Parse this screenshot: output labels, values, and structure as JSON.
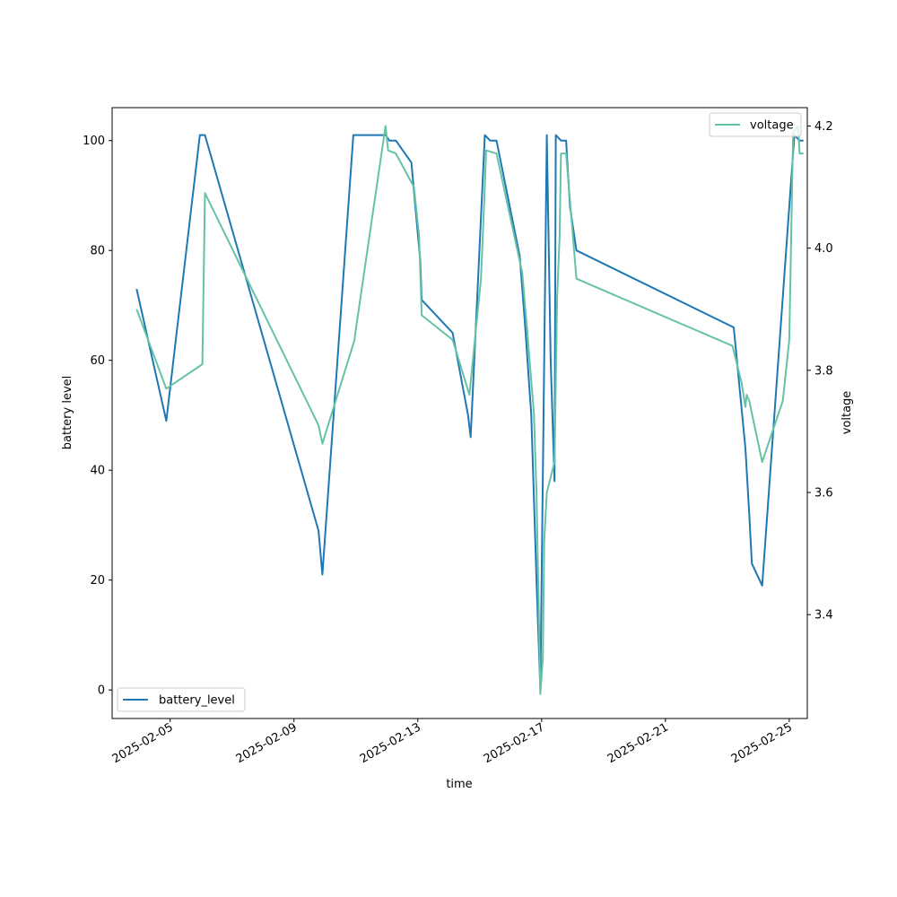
{
  "chart_data": {
    "type": "line",
    "xlabel": "time",
    "ylabel_left": "battery level",
    "ylabel_right": "voltage",
    "x_axis": {
      "type": "date",
      "range": [
        "2025-02-03T03:00",
        "2025-02-25T14:00"
      ],
      "ticks": [
        "2025-02-05",
        "2025-02-09",
        "2025-02-13",
        "2025-02-17",
        "2025-02-21",
        "2025-02-25"
      ]
    },
    "y_left": {
      "range": [
        -5.2,
        106
      ],
      "ticks": [
        0,
        20,
        40,
        60,
        80,
        100
      ]
    },
    "y_right": {
      "range": [
        3.23,
        4.23
      ],
      "ticks": [
        3.4,
        3.6,
        3.8,
        4.0,
        4.2
      ]
    },
    "legend": [
      {
        "name": "battery_level",
        "placement": "lower left"
      },
      {
        "name": "voltage",
        "placement": "upper right"
      }
    ],
    "series": [
      {
        "name": "battery_level",
        "axis": "left",
        "color": "#1f77b4",
        "points": [
          [
            "2025-02-03T22:00",
            73
          ],
          [
            "2025-02-04T21:00",
            49
          ],
          [
            "2025-02-05T23:00",
            101
          ],
          [
            "2025-02-06T03:00",
            101
          ],
          [
            "2025-02-09T19:00",
            29
          ],
          [
            "2025-02-09T22:00",
            21
          ],
          [
            "2025-02-10T22:00",
            101
          ],
          [
            "2025-02-11T23:00",
            101
          ],
          [
            "2025-02-12T02:00",
            100
          ],
          [
            "2025-02-12T07:00",
            100
          ],
          [
            "2025-02-12T19:00",
            96
          ],
          [
            "2025-02-13T02:00",
            78
          ],
          [
            "2025-02-13T03:00",
            71
          ],
          [
            "2025-02-14T03:00",
            65
          ],
          [
            "2025-02-14T15:00",
            50
          ],
          [
            "2025-02-14T17:00",
            46
          ],
          [
            "2025-02-15T04:00",
            101
          ],
          [
            "2025-02-15T08:00",
            100
          ],
          [
            "2025-02-15T13:00",
            100
          ],
          [
            "2025-02-16T07:00",
            79
          ],
          [
            "2025-02-16T11:00",
            67
          ],
          [
            "2025-02-16T16:00",
            50
          ],
          [
            "2025-02-16T20:00",
            20
          ],
          [
            "2025-02-16T23:00",
            0
          ],
          [
            "2025-02-17T04:00",
            101
          ],
          [
            "2025-02-17T07:00",
            60
          ],
          [
            "2025-02-17T10:00",
            38
          ],
          [
            "2025-02-17T11:00",
            101
          ],
          [
            "2025-02-17T15:00",
            100
          ],
          [
            "2025-02-17T19:00",
            100
          ],
          [
            "2025-02-17T22:00",
            88
          ],
          [
            "2025-02-18T03:00",
            80
          ],
          [
            "2025-02-23T05:00",
            66
          ],
          [
            "2025-02-23T14:00",
            44
          ],
          [
            "2025-02-23T17:00",
            32
          ],
          [
            "2025-02-23T19:00",
            23
          ],
          [
            "2025-02-24T03:00",
            19
          ],
          [
            "2025-02-25T04:00",
            101
          ],
          [
            "2025-02-25T08:00",
            100
          ],
          [
            "2025-02-25T11:00",
            100
          ]
        ]
      },
      {
        "name": "voltage",
        "axis": "right",
        "color": "#66c2a5",
        "points": [
          [
            "2025-02-03T22:00",
            3.9
          ],
          [
            "2025-02-04T21:00",
            3.77
          ],
          [
            "2025-02-06T01:00",
            3.81
          ],
          [
            "2025-02-06T03:00",
            4.09
          ],
          [
            "2025-02-09T19:00",
            3.71
          ],
          [
            "2025-02-09T22:00",
            3.68
          ],
          [
            "2025-02-10T23:00",
            3.85
          ],
          [
            "2025-02-10T23:30",
            3.86
          ],
          [
            "2025-02-11T23:00",
            4.2
          ],
          [
            "2025-02-12T01:00",
            4.16
          ],
          [
            "2025-02-12T07:00",
            4.155
          ],
          [
            "2025-02-12T21:00",
            4.1
          ],
          [
            "2025-02-13T01:00",
            4.02
          ],
          [
            "2025-02-13T03:00",
            3.89
          ],
          [
            "2025-02-14T03:00",
            3.85
          ],
          [
            "2025-02-14T16:00",
            3.76
          ],
          [
            "2025-02-15T01:00",
            3.95
          ],
          [
            "2025-02-15T03:00",
            4.05
          ],
          [
            "2025-02-15T05:00",
            4.16
          ],
          [
            "2025-02-15T13:00",
            4.155
          ],
          [
            "2025-02-16T09:00",
            3.96
          ],
          [
            "2025-02-16T13:00",
            3.86
          ],
          [
            "2025-02-16T18:00",
            3.73
          ],
          [
            "2025-02-16T20:00",
            3.6
          ],
          [
            "2025-02-16T23:00",
            3.27
          ],
          [
            "2025-02-17T01:00",
            3.33
          ],
          [
            "2025-02-17T02:00",
            3.52
          ],
          [
            "2025-02-17T04:00",
            3.6
          ],
          [
            "2025-02-17T10:00",
            3.65
          ],
          [
            "2025-02-17T12:00",
            3.92
          ],
          [
            "2025-02-17T14:00",
            4.02
          ],
          [
            "2025-02-17T15:00",
            4.155
          ],
          [
            "2025-02-17T19:00",
            4.155
          ],
          [
            "2025-02-18T03:00",
            3.95
          ],
          [
            "2025-02-23T04:00",
            3.84
          ],
          [
            "2025-02-23T11:00",
            3.78
          ],
          [
            "2025-02-23T14:00",
            3.74
          ],
          [
            "2025-02-23T15:00",
            3.76
          ],
          [
            "2025-02-23T17:00",
            3.75
          ],
          [
            "2025-02-24T03:00",
            3.65
          ],
          [
            "2025-02-24T19:00",
            3.75
          ],
          [
            "2025-02-25T00:00",
            3.85
          ],
          [
            "2025-02-25T03:00",
            4.19
          ],
          [
            "2025-02-25T07:00",
            4.2
          ],
          [
            "2025-02-25T08:00",
            4.155
          ],
          [
            "2025-02-25T10:00",
            4.155
          ],
          [
            "2025-02-25T11:00",
            4.155
          ]
        ]
      }
    ]
  }
}
